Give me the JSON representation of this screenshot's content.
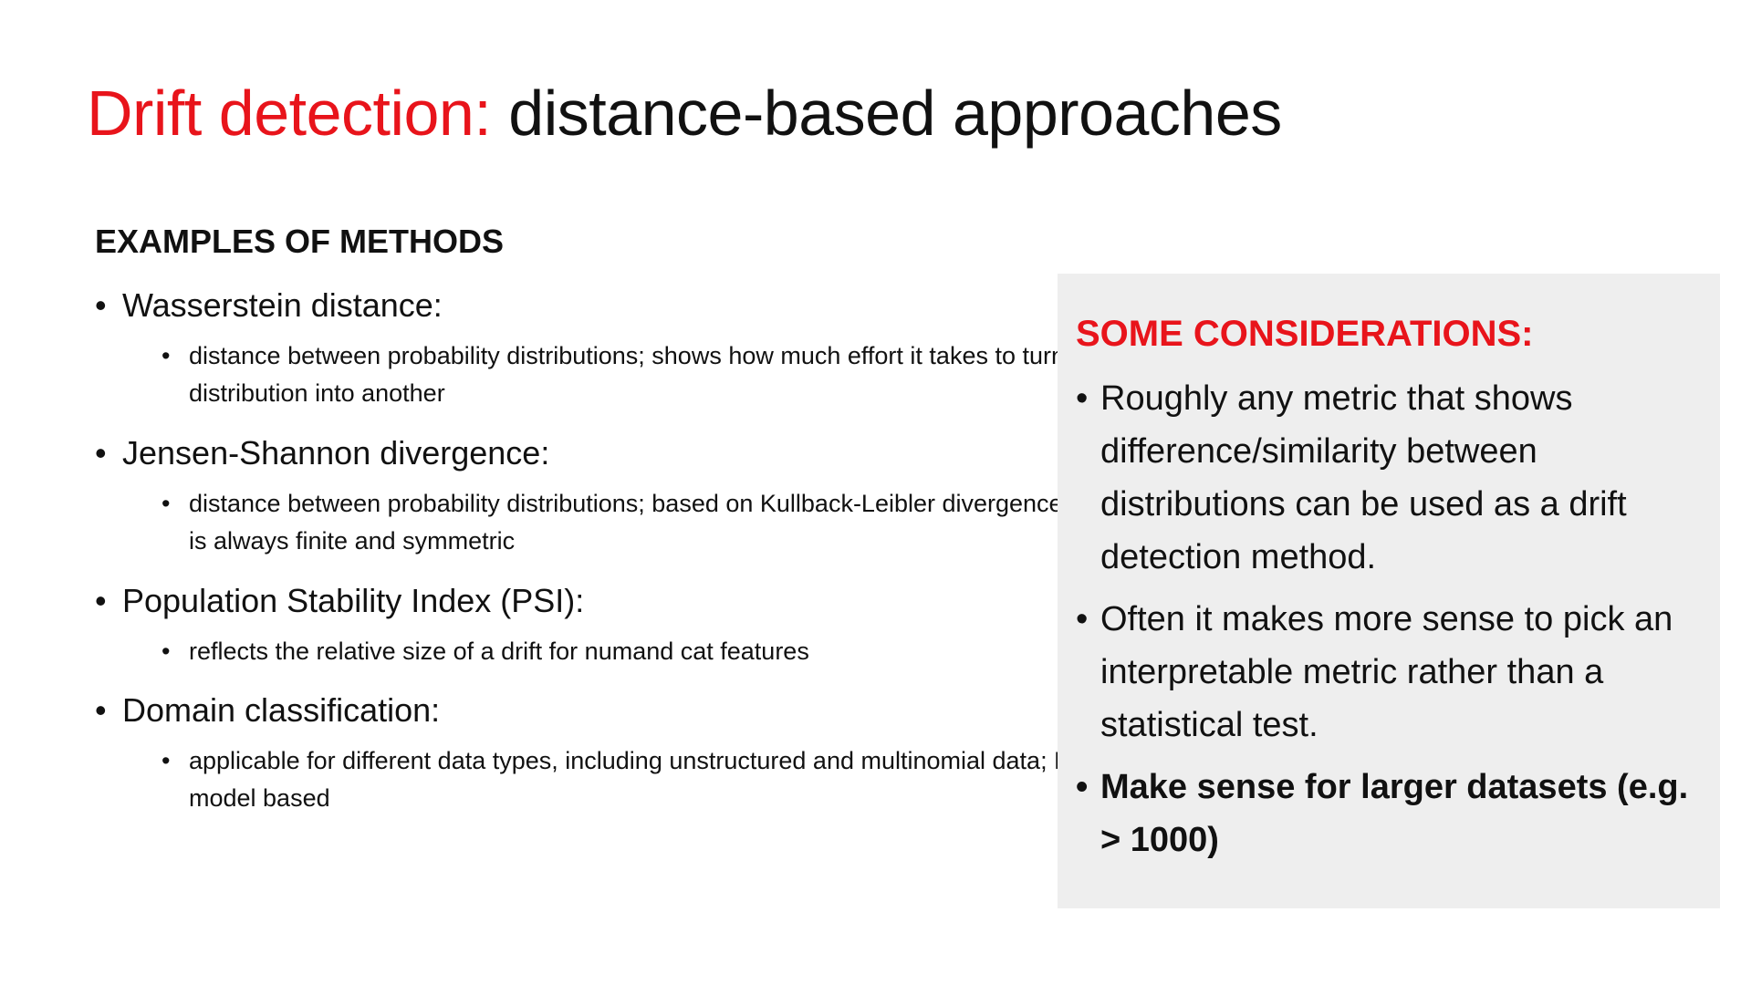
{
  "title": {
    "accent": "Drift detection:",
    "rest": " distance-based approaches"
  },
  "methods": {
    "heading": "EXAMPLES OF METHODS",
    "items": [
      {
        "name": "Wasserstein distance:",
        "description": "distance between probability distributions; shows how much effort it takes to turn one distribution into another"
      },
      {
        "name": "Jensen-Shannon divergence:",
        "description": "distance between probability distributions; based on Kullback-Leibler divergence, but it is always finite and symmetric"
      },
      {
        "name": "Population Stability Index (PSI):",
        "description": "reflects the relative size of a drift for numand cat features"
      },
      {
        "name": "Domain classification:",
        "description": "applicable for different data types, including unstructured and multinomial data; ML-model based"
      }
    ]
  },
  "considerations": {
    "heading": "SOME CONSIDERATIONS:",
    "items": [
      {
        "text": "Roughly any metric that shows difference/similarity between distributions can be used as a drift detection method.",
        "bold": false
      },
      {
        "text": "Often it makes more sense to pick an interpretable metric rather than a statistical test.",
        "bold": false
      },
      {
        "text": "Make sense for larger datasets (e.g. > 1000)",
        "bold": true
      }
    ]
  },
  "colors": {
    "accent": "#e8141b",
    "text": "#111111",
    "panel_background": "#eeeeee"
  }
}
